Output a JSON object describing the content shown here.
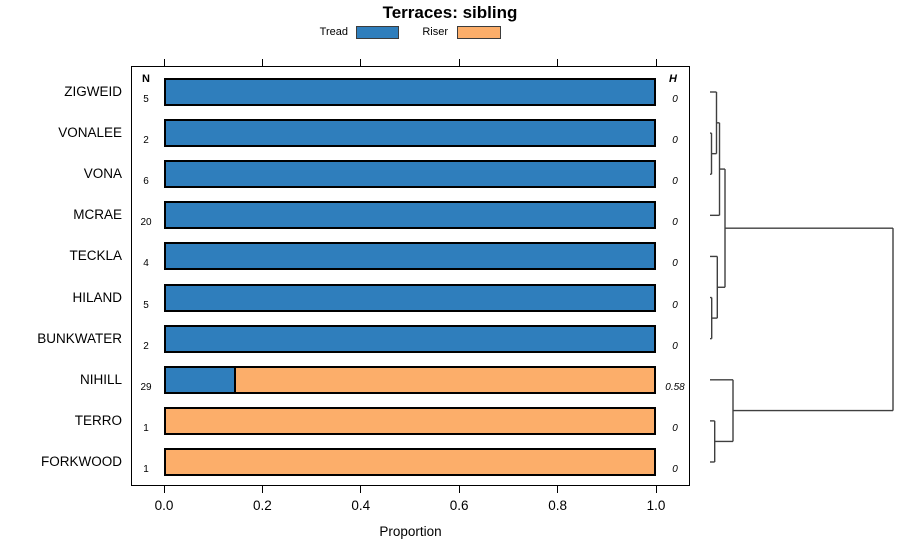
{
  "title": "Terraces: sibling",
  "legend": [
    {
      "label": "Tread",
      "color": "#2F7EBC"
    },
    {
      "label": "Riser",
      "color": "#FCAE6A"
    }
  ],
  "columns": {
    "n": "N",
    "h": "H"
  },
  "xaxis": {
    "label": "Proportion",
    "ticks": [
      "0.0",
      "0.2",
      "0.4",
      "0.6",
      "0.8",
      "1.0"
    ]
  },
  "chart_data": {
    "type": "bar",
    "orientation": "horizontal",
    "stacked": true,
    "title": "Terraces: sibling",
    "xlabel": "Proportion",
    "xlim": [
      0,
      1
    ],
    "grid": false,
    "legend_position": "top",
    "categories": [
      "ZIGWEID",
      "VONALEE",
      "VONA",
      "MCRAE",
      "TECKLA",
      "HILAND",
      "BUNKWATER",
      "NIHILL",
      "TERRO",
      "FORKWOOD"
    ],
    "series": [
      {
        "name": "Tread",
        "color": "#2F7EBC",
        "values": [
          1,
          1,
          1,
          1,
          1,
          1,
          1,
          0.14,
          0,
          0
        ]
      },
      {
        "name": "Riser",
        "color": "#FCAE6A",
        "values": [
          0,
          0,
          0,
          0,
          0,
          0,
          0,
          0.86,
          1,
          1
        ]
      }
    ],
    "n_values": [
      5,
      2,
      6,
      20,
      4,
      5,
      2,
      29,
      1,
      1
    ],
    "h_values": [
      "0",
      "0",
      "0",
      "0",
      "0",
      "0",
      "0",
      "0.58",
      "0",
      "0"
    ],
    "dendrogram": {
      "side": "right",
      "tree": {
        "h": 1.0,
        "children": [
          {
            "h": 0.082,
            "children": [
              {
                "h": 0.052,
                "children": [
                  {
                    "h": 0.0355,
                    "children": [
                      {
                        "leaf": 0
                      },
                      {
                        "h": 0.0082,
                        "children": [
                          {
                            "leaf": 1
                          },
                          {
                            "leaf": 2
                          }
                        ]
                      }
                    ]
                  },
                  {
                    "leaf": 3
                  }
                ]
              },
              {
                "h": 0.0399,
                "children": [
                  {
                    "leaf": 4
                  },
                  {
                    "h": 0.0093,
                    "children": [
                      {
                        "leaf": 5
                      },
                      {
                        "leaf": 6
                      }
                    ]
                  }
                ]
              }
            ]
          },
          {
            "h": 0.1257,
            "children": [
              {
                "leaf": 7
              },
              {
                "h": 0.0257,
                "children": [
                  {
                    "leaf": 8
                  },
                  {
                    "leaf": 9
                  }
                ]
              }
            ]
          }
        ]
      }
    }
  }
}
